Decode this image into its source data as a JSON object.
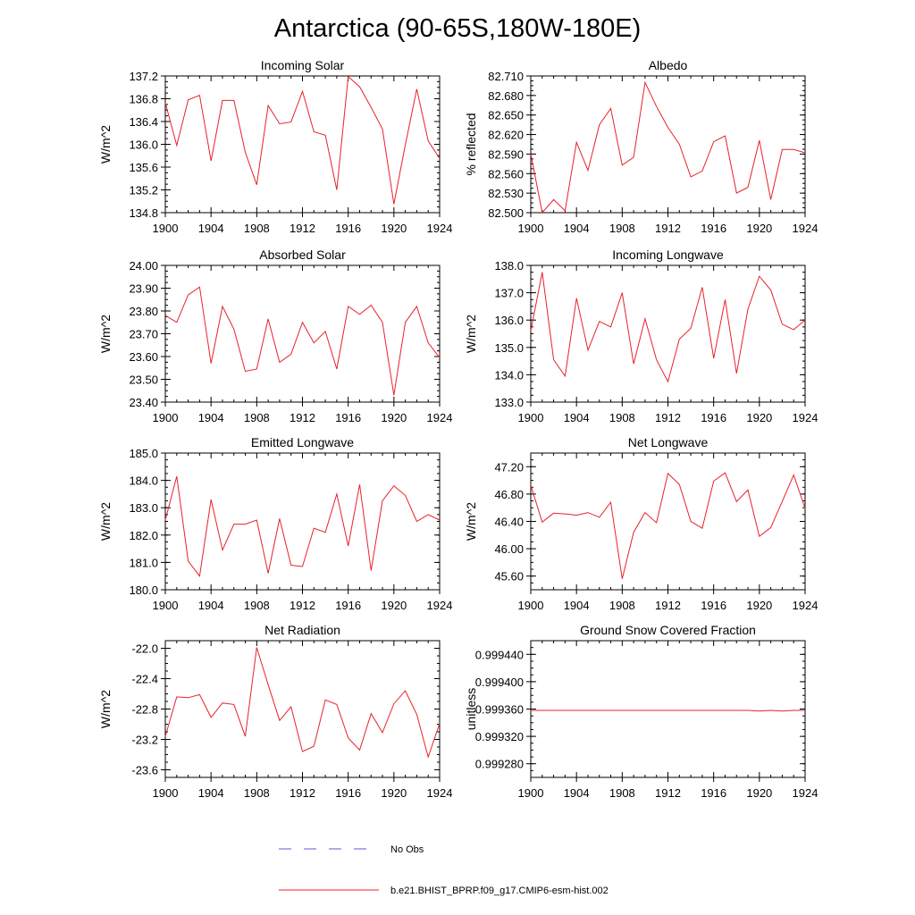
{
  "title": "Antarctica (90-65S,180W-180E)",
  "legend": [
    {
      "label": "No Obs",
      "color": "#5a5ad6",
      "dash": true
    },
    {
      "label": "b.e21.BHIST_BPRP.f09_g17.CMIP6-esm-hist.002",
      "color": "#e8212a",
      "dash": false
    }
  ],
  "chart_data": [
    {
      "type": "line",
      "title": "Incoming Solar",
      "ylabel": "W/m^2",
      "xlim": [
        1900,
        1924
      ],
      "xticks": [
        "1900",
        "1904",
        "1908",
        "1912",
        "1916",
        "1920",
        "1924"
      ],
      "ylim": [
        134.8,
        137.2
      ],
      "yticks": [
        "134.8",
        "135.2",
        "135.6",
        "136.0",
        "136.4",
        "136.8",
        "137.2"
      ],
      "color": "#e8212a",
      "x": [
        1900,
        1901,
        1902,
        1903,
        1904,
        1905,
        1906,
        1907,
        1908,
        1909,
        1910,
        1911,
        1912,
        1913,
        1914,
        1915,
        1916,
        1917,
        1918,
        1919,
        1920,
        1921,
        1922,
        1923,
        1924
      ],
      "values": [
        136.73,
        135.98,
        136.78,
        136.86,
        135.71,
        136.77,
        136.77,
        135.86,
        135.29,
        136.68,
        136.36,
        136.39,
        136.93,
        136.22,
        136.16,
        135.2,
        137.19,
        137.01,
        136.65,
        136.27,
        134.95,
        135.99,
        136.97,
        136.06,
        135.75
      ]
    },
    {
      "type": "line",
      "title": "Albedo",
      "ylabel": "% reflected",
      "xlim": [
        1900,
        1924
      ],
      "xticks": [
        "1900",
        "1904",
        "1908",
        "1912",
        "1916",
        "1920",
        "1924"
      ],
      "ylim": [
        82.5,
        82.71
      ],
      "yticks": [
        "82.500",
        "82.530",
        "82.560",
        "82.590",
        "82.620",
        "82.650",
        "82.680",
        "82.710"
      ],
      "color": "#e8212a",
      "x": [
        1900,
        1901,
        1902,
        1903,
        1904,
        1905,
        1906,
        1907,
        1908,
        1909,
        1910,
        1911,
        1912,
        1913,
        1914,
        1915,
        1916,
        1917,
        1918,
        1919,
        1920,
        1921,
        1922,
        1923,
        1924
      ],
      "values": [
        82.59,
        82.5,
        82.52,
        82.503,
        82.608,
        82.565,
        82.635,
        82.66,
        82.573,
        82.585,
        82.7,
        82.663,
        82.631,
        82.605,
        82.555,
        82.564,
        82.609,
        82.618,
        82.53,
        82.539,
        82.611,
        82.52,
        82.597,
        82.597,
        82.592
      ]
    },
    {
      "type": "line",
      "title": "Absorbed Solar",
      "ylabel": "W/m^2",
      "xlim": [
        1900,
        1924
      ],
      "xticks": [
        "1900",
        "1904",
        "1908",
        "1912",
        "1916",
        "1920",
        "1924"
      ],
      "ylim": [
        23.4,
        24.0
      ],
      "yticks": [
        "23.40",
        "23.50",
        "23.60",
        "23.70",
        "23.80",
        "23.90",
        "24.00"
      ],
      "color": "#e8212a",
      "x": [
        1900,
        1901,
        1902,
        1903,
        1904,
        1905,
        1906,
        1907,
        1908,
        1909,
        1910,
        1911,
        1912,
        1913,
        1914,
        1915,
        1916,
        1917,
        1918,
        1919,
        1920,
        1921,
        1922,
        1923,
        1924
      ],
      "values": [
        23.78,
        23.75,
        23.87,
        23.905,
        23.57,
        23.82,
        23.72,
        23.535,
        23.545,
        23.765,
        23.575,
        23.61,
        23.75,
        23.66,
        23.71,
        23.545,
        23.82,
        23.785,
        23.825,
        23.75,
        23.43,
        23.75,
        23.82,
        23.66,
        23.595
      ]
    },
    {
      "type": "line",
      "title": "Incoming Longwave",
      "ylabel": "W/m^2",
      "xlim": [
        1900,
        1924
      ],
      "xticks": [
        "1900",
        "1904",
        "1908",
        "1912",
        "1916",
        "1920",
        "1924"
      ],
      "ylim": [
        133.0,
        138.0
      ],
      "yticks": [
        "133.0",
        "134.0",
        "135.0",
        "136.0",
        "137.0",
        "138.0"
      ],
      "color": "#e8212a",
      "x": [
        1900,
        1901,
        1902,
        1903,
        1904,
        1905,
        1906,
        1907,
        1908,
        1909,
        1910,
        1911,
        1912,
        1913,
        1914,
        1915,
        1916,
        1917,
        1918,
        1919,
        1920,
        1921,
        1922,
        1923,
        1924
      ],
      "values": [
        135.6,
        137.75,
        134.55,
        133.95,
        136.8,
        134.9,
        135.95,
        135.75,
        137.0,
        134.4,
        136.05,
        134.55,
        133.75,
        135.3,
        135.7,
        137.2,
        134.6,
        136.75,
        134.05,
        136.4,
        137.6,
        137.1,
        135.85,
        135.65,
        136.0
      ]
    },
    {
      "type": "line",
      "title": "Emitted Longwave",
      "ylabel": "W/m^2",
      "xlim": [
        1900,
        1924
      ],
      "xticks": [
        "1900",
        "1904",
        "1908",
        "1912",
        "1916",
        "1920",
        "1924"
      ],
      "ylim": [
        180.0,
        185.0
      ],
      "yticks": [
        "180.0",
        "181.0",
        "182.0",
        "183.0",
        "184.0",
        "185.0"
      ],
      "color": "#e8212a",
      "x": [
        1900,
        1901,
        1902,
        1903,
        1904,
        1905,
        1906,
        1907,
        1908,
        1909,
        1910,
        1911,
        1912,
        1913,
        1914,
        1915,
        1916,
        1917,
        1918,
        1919,
        1920,
        1921,
        1922,
        1923,
        1924
      ],
      "values": [
        182.55,
        184.15,
        181.05,
        180.5,
        183.3,
        181.45,
        182.4,
        182.4,
        182.55,
        180.6,
        182.6,
        180.9,
        180.85,
        182.25,
        182.1,
        183.5,
        181.6,
        183.85,
        180.7,
        183.25,
        183.8,
        183.45,
        182.5,
        182.75,
        182.55
      ]
    },
    {
      "type": "line",
      "title": "Net Longwave",
      "ylabel": "W/m^2",
      "xlim": [
        1900,
        1924
      ],
      "xticks": [
        "1900",
        "1904",
        "1908",
        "1912",
        "1916",
        "1920",
        "1924"
      ],
      "ylim": [
        45.4,
        47.4
      ],
      "yticks": [
        "45.60",
        "46.00",
        "46.40",
        "46.80",
        "47.20"
      ],
      "color": "#e8212a",
      "x": [
        1900,
        1901,
        1902,
        1903,
        1904,
        1905,
        1906,
        1907,
        1908,
        1909,
        1910,
        1911,
        1912,
        1913,
        1914,
        1915,
        1916,
        1917,
        1918,
        1919,
        1920,
        1921,
        1922,
        1923,
        1924
      ],
      "values": [
        46.93,
        46.39,
        46.52,
        46.51,
        46.49,
        46.53,
        46.46,
        46.68,
        45.56,
        46.24,
        46.53,
        46.38,
        47.1,
        46.94,
        46.4,
        46.3,
        46.99,
        47.11,
        46.69,
        46.86,
        46.18,
        46.31,
        46.69,
        47.08,
        46.59
      ]
    },
    {
      "type": "line",
      "title": "Net Radiation",
      "ylabel": "W/m^2",
      "xlim": [
        1900,
        1924
      ],
      "xticks": [
        "1900",
        "1904",
        "1908",
        "1912",
        "1916",
        "1920",
        "1924"
      ],
      "ylim": [
        -23.7,
        -21.9
      ],
      "yticks": [
        "-23.6",
        "-23.2",
        "-22.8",
        "-22.4",
        "-22.0"
      ],
      "color": "#e8212a",
      "x": [
        1900,
        1901,
        1902,
        1903,
        1904,
        1905,
        1906,
        1907,
        1908,
        1909,
        1910,
        1911,
        1912,
        1913,
        1914,
        1915,
        1916,
        1917,
        1918,
        1919,
        1920,
        1921,
        1922,
        1923,
        1924
      ],
      "values": [
        -23.16,
        -22.64,
        -22.65,
        -22.61,
        -22.91,
        -22.72,
        -22.74,
        -23.16,
        -21.99,
        -22.48,
        -22.95,
        -22.77,
        -23.36,
        -23.29,
        -22.68,
        -22.74,
        -23.18,
        -23.34,
        -22.86,
        -23.11,
        -22.73,
        -22.56,
        -22.87,
        -23.43,
        -22.99
      ]
    },
    {
      "type": "line",
      "title": "Ground Snow Covered Fraction",
      "ylabel": "unitless",
      "xlim": [
        1900,
        1924
      ],
      "xticks": [
        "1900",
        "1904",
        "1908",
        "1912",
        "1916",
        "1920",
        "1924"
      ],
      "ylim": [
        0.99926,
        0.99946
      ],
      "yticks": [
        "0.999280",
        "0.999320",
        "0.999360",
        "0.999400",
        "0.999440"
      ],
      "color": "#e8212a",
      "x": [
        1900,
        1901,
        1902,
        1903,
        1904,
        1905,
        1906,
        1907,
        1908,
        1909,
        1910,
        1911,
        1912,
        1913,
        1914,
        1915,
        1916,
        1917,
        1918,
        1919,
        1920,
        1921,
        1922,
        1923,
        1924
      ],
      "values": [
        0.999358,
        0.999358,
        0.999358,
        0.999358,
        0.999358,
        0.999358,
        0.999358,
        0.999358,
        0.999358,
        0.999358,
        0.999358,
        0.999358,
        0.999358,
        0.999358,
        0.999358,
        0.999358,
        0.999358,
        0.999358,
        0.999358,
        0.999358,
        0.999357,
        0.999358,
        0.999357,
        0.999358,
        0.999358
      ]
    }
  ]
}
